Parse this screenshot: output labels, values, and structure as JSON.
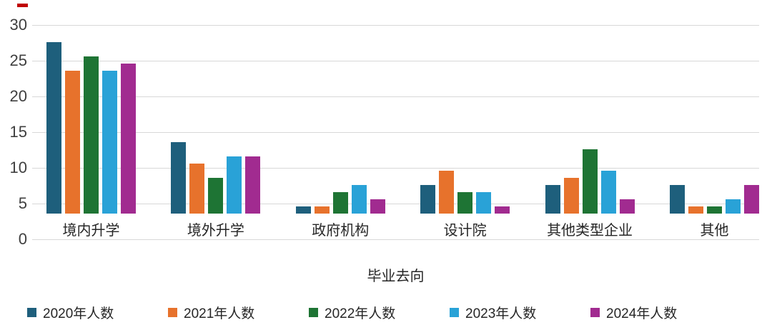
{
  "chart_data": {
    "type": "bar",
    "title": "",
    "categories": [
      "境内升学",
      "境外升学",
      "政府机构",
      "设计院",
      "其他类型企业",
      "其他"
    ],
    "series": [
      {
        "name": "2020年人数",
        "color": "#1e5f7c",
        "values": [
          24,
          10,
          1,
          4,
          4,
          4
        ]
      },
      {
        "name": "2021年人数",
        "color": "#e7722c",
        "values": [
          20,
          7,
          1,
          6,
          5,
          1
        ]
      },
      {
        "name": "2022年人数",
        "color": "#1e7434",
        "values": [
          22,
          5,
          3,
          3,
          9,
          1
        ]
      },
      {
        "name": "2023年人数",
        "color": "#29a2d7",
        "values": [
          20,
          8,
          4,
          3,
          6,
          2
        ]
      },
      {
        "name": "2024年人数",
        "color": "#a12b90",
        "values": [
          21,
          8,
          2,
          1,
          2,
          4
        ]
      }
    ],
    "xlabel": "毕业去向",
    "ylabel": "",
    "ylim": [
      0,
      30
    ],
    "yticks": [
      0,
      5,
      10,
      15,
      20,
      25,
      30
    ],
    "grid": true,
    "legend_position": "bottom",
    "colors": {
      "gridline": "#d8d8d8",
      "tick_label": "#3f3f3f",
      "text": "#262626",
      "background": "#ffffff",
      "corner_mark": "#c00000"
    }
  }
}
